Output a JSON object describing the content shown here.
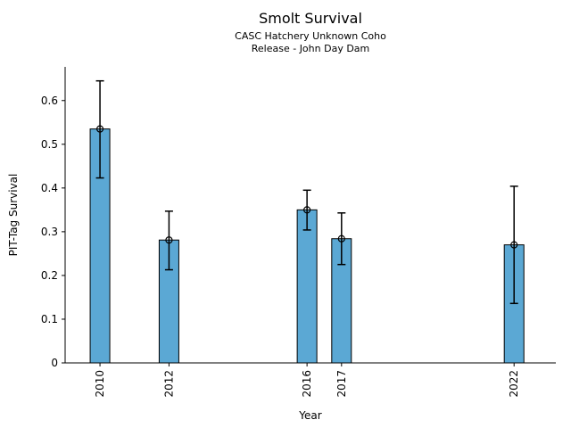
{
  "chart_data": {
    "type": "bar",
    "title": "Smolt Survival",
    "subtitle_lines": [
      "CASC Hatchery Unknown Coho",
      "Release - John Day Dam"
    ],
    "xlabel": "Year",
    "ylabel": "PIT-Tag Survival",
    "categories": [
      2010,
      2012,
      2016,
      2017,
      2022
    ],
    "x_tick_labels": [
      "2010",
      "2012",
      "2016",
      "2017",
      "2022"
    ],
    "values": [
      0.535,
      0.281,
      0.35,
      0.284,
      0.27
    ],
    "error_low": [
      0.423,
      0.213,
      0.304,
      0.225,
      0.136
    ],
    "error_high": [
      0.645,
      0.347,
      0.395,
      0.343,
      0.404
    ],
    "y_ticks": [
      0,
      0.1,
      0.2,
      0.3,
      0.4,
      0.5,
      0.6
    ],
    "y_tick_labels": [
      "0",
      "0.1",
      "0.2",
      "0.3",
      "0.4",
      "0.5",
      "0.6"
    ],
    "xlim": [
      2008.99,
      2023.21
    ],
    "ylim": [
      0,
      0.677
    ],
    "grid": false,
    "legend": null,
    "marker": "open-circle",
    "bar_color": "#5BA8D4",
    "bar_edge_color": "#000000",
    "error_color": "#000000",
    "axis_color": "#000000",
    "x_tick_rotation_deg": 90
  }
}
